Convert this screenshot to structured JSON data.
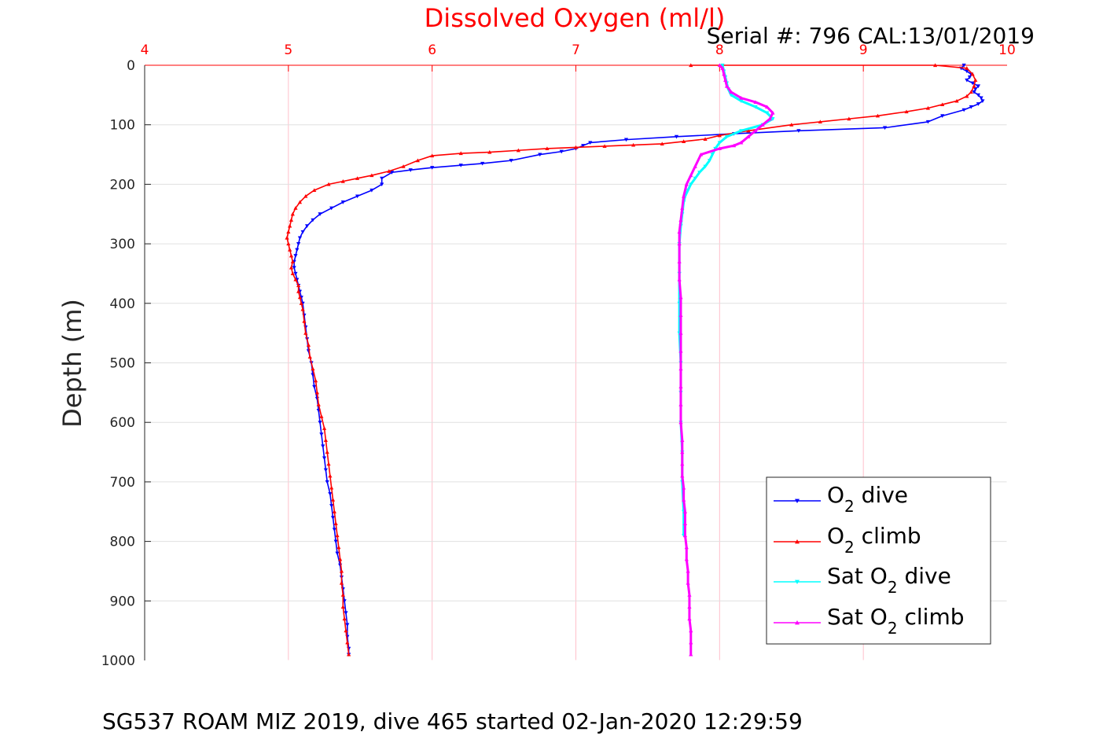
{
  "chart_data": {
    "type": "scatter",
    "title": "Dissolved Oxygen (ml/l)",
    "serial_text": "Serial #: 796  CAL:13/01/2019",
    "xlabel": "",
    "ylabel": "Depth (m)",
    "xlim": [
      4,
      10
    ],
    "ylim": [
      0,
      1000
    ],
    "y_reversed": true,
    "x_axis_location": "top",
    "x_ticks": [
      4,
      5,
      6,
      7,
      8,
      9,
      10
    ],
    "y_ticks": [
      0,
      100,
      200,
      300,
      400,
      500,
      600,
      700,
      800,
      900,
      1000
    ],
    "grid": true,
    "legend_position": "bottom-right",
    "caption": "SG537 ROAM MIZ 2019, dive 465 started 02-Jan-2020 12:29:59",
    "series": [
      {
        "name": "O2 dive",
        "legend": {
          "main": "O",
          "sub": "2",
          "rest": " dive"
        },
        "color": "#0000ff",
        "marker": "triangle-down",
        "points": [
          [
            9.7,
            0
          ],
          [
            9.68,
            5
          ],
          [
            9.72,
            10
          ],
          [
            9.75,
            15
          ],
          [
            9.74,
            20
          ],
          [
            9.72,
            25
          ],
          [
            9.76,
            30
          ],
          [
            9.8,
            35
          ],
          [
            9.78,
            40
          ],
          [
            9.77,
            45
          ],
          [
            9.8,
            50
          ],
          [
            9.82,
            55
          ],
          [
            9.83,
            60
          ],
          [
            9.8,
            65
          ],
          [
            9.75,
            70
          ],
          [
            9.7,
            75
          ],
          [
            9.55,
            85
          ],
          [
            9.45,
            95
          ],
          [
            9.15,
            105
          ],
          [
            8.55,
            110
          ],
          [
            8.1,
            115
          ],
          [
            7.7,
            120
          ],
          [
            7.35,
            125
          ],
          [
            7.1,
            130
          ],
          [
            7.05,
            135
          ],
          [
            7.0,
            140
          ],
          [
            6.9,
            145
          ],
          [
            6.75,
            150
          ],
          [
            6.55,
            160
          ],
          [
            6.35,
            165
          ],
          [
            6.2,
            168
          ],
          [
            6.0,
            172
          ],
          [
            5.85,
            176
          ],
          [
            5.72,
            180
          ],
          [
            5.65,
            190
          ],
          [
            5.65,
            200
          ],
          [
            5.58,
            210
          ],
          [
            5.48,
            220
          ],
          [
            5.38,
            230
          ],
          [
            5.3,
            240
          ],
          [
            5.22,
            250
          ],
          [
            5.17,
            260
          ],
          [
            5.13,
            270
          ],
          [
            5.1,
            280
          ],
          [
            5.08,
            290
          ],
          [
            5.07,
            300
          ],
          [
            5.06,
            310
          ],
          [
            5.05,
            320
          ],
          [
            5.04,
            330
          ],
          [
            5.04,
            340
          ],
          [
            5.05,
            350
          ],
          [
            5.06,
            360
          ],
          [
            5.07,
            370
          ],
          [
            5.08,
            380
          ],
          [
            5.09,
            390
          ],
          [
            5.1,
            400
          ],
          [
            5.11,
            420
          ],
          [
            5.12,
            440
          ],
          [
            5.13,
            460
          ],
          [
            5.14,
            480
          ],
          [
            5.16,
            500
          ],
          [
            5.17,
            520
          ],
          [
            5.18,
            540
          ],
          [
            5.2,
            560
          ],
          [
            5.21,
            580
          ],
          [
            5.22,
            600
          ],
          [
            5.23,
            620
          ],
          [
            5.24,
            640
          ],
          [
            5.25,
            660
          ],
          [
            5.26,
            680
          ],
          [
            5.27,
            700
          ],
          [
            5.29,
            720
          ],
          [
            5.3,
            740
          ],
          [
            5.31,
            760
          ],
          [
            5.32,
            780
          ],
          [
            5.33,
            800
          ],
          [
            5.34,
            820
          ],
          [
            5.36,
            840
          ],
          [
            5.37,
            860
          ],
          [
            5.38,
            880
          ],
          [
            5.39,
            900
          ],
          [
            5.4,
            920
          ],
          [
            5.41,
            940
          ],
          [
            5.41,
            960
          ],
          [
            5.42,
            980
          ],
          [
            5.42,
            990
          ]
        ]
      },
      {
        "name": "O2 climb",
        "legend": {
          "main": "O",
          "sub": "2",
          "rest": " climb"
        },
        "color": "#ff0000",
        "marker": "triangle-up",
        "points": [
          [
            5.42,
            990
          ],
          [
            5.41,
            970
          ],
          [
            5.4,
            950
          ],
          [
            5.39,
            930
          ],
          [
            5.38,
            910
          ],
          [
            5.38,
            890
          ],
          [
            5.37,
            870
          ],
          [
            5.37,
            850
          ],
          [
            5.36,
            830
          ],
          [
            5.35,
            810
          ],
          [
            5.34,
            790
          ],
          [
            5.33,
            770
          ],
          [
            5.32,
            750
          ],
          [
            5.31,
            730
          ],
          [
            5.3,
            710
          ],
          [
            5.29,
            690
          ],
          [
            5.28,
            670
          ],
          [
            5.27,
            650
          ],
          [
            5.26,
            630
          ],
          [
            5.25,
            610
          ],
          [
            5.23,
            590
          ],
          [
            5.21,
            570
          ],
          [
            5.2,
            550
          ],
          [
            5.19,
            530
          ],
          [
            5.17,
            510
          ],
          [
            5.15,
            490
          ],
          [
            5.14,
            470
          ],
          [
            5.12,
            450
          ],
          [
            5.11,
            430
          ],
          [
            5.1,
            410
          ],
          [
            5.09,
            400
          ],
          [
            5.08,
            390
          ],
          [
            5.07,
            380
          ],
          [
            5.07,
            370
          ],
          [
            5.05,
            360
          ],
          [
            5.03,
            350
          ],
          [
            5.02,
            340
          ],
          [
            5.03,
            330
          ],
          [
            5.02,
            320
          ],
          [
            5.01,
            310
          ],
          [
            5.0,
            300
          ],
          [
            4.99,
            290
          ],
          [
            5.0,
            280
          ],
          [
            5.01,
            270
          ],
          [
            5.02,
            260
          ],
          [
            5.03,
            250
          ],
          [
            5.05,
            240
          ],
          [
            5.08,
            230
          ],
          [
            5.12,
            220
          ],
          [
            5.18,
            210
          ],
          [
            5.28,
            200
          ],
          [
            5.38,
            195
          ],
          [
            5.48,
            190
          ],
          [
            5.58,
            185
          ],
          [
            5.7,
            178
          ],
          [
            5.8,
            170
          ],
          [
            5.9,
            160
          ],
          [
            6.0,
            152
          ],
          [
            6.2,
            148
          ],
          [
            6.4,
            146
          ],
          [
            6.6,
            143
          ],
          [
            6.8,
            140
          ],
          [
            7.0,
            138
          ],
          [
            7.2,
            136
          ],
          [
            7.4,
            134
          ],
          [
            7.6,
            132
          ],
          [
            7.75,
            128
          ],
          [
            7.9,
            124
          ],
          [
            8.0,
            118
          ],
          [
            8.2,
            110
          ],
          [
            8.5,
            100
          ],
          [
            8.7,
            95
          ],
          [
            8.9,
            90
          ],
          [
            9.1,
            85
          ],
          [
            9.3,
            78
          ],
          [
            9.45,
            72
          ],
          [
            9.55,
            66
          ],
          [
            9.65,
            60
          ],
          [
            9.72,
            52
          ],
          [
            9.75,
            45
          ],
          [
            9.77,
            35
          ],
          [
            9.78,
            25
          ],
          [
            9.76,
            15
          ],
          [
            9.72,
            5
          ],
          [
            9.5,
            0
          ],
          [
            7.8,
            0
          ]
        ]
      },
      {
        "name": "Sat O2 dive",
        "legend": {
          "main": "Sat O",
          "sub": "2",
          "rest": " dive"
        },
        "color": "#00ffff",
        "marker": "triangle-down",
        "points": [
          [
            8.02,
            0
          ],
          [
            8.03,
            10
          ],
          [
            8.04,
            20
          ],
          [
            8.05,
            30
          ],
          [
            8.06,
            40
          ],
          [
            8.08,
            50
          ],
          [
            8.15,
            60
          ],
          [
            8.25,
            70
          ],
          [
            8.33,
            80
          ],
          [
            8.37,
            90
          ],
          [
            8.3,
            100
          ],
          [
            8.15,
            110
          ],
          [
            8.05,
            120
          ],
          [
            8.0,
            130
          ],
          [
            7.97,
            140
          ],
          [
            7.95,
            150
          ],
          [
            7.93,
            160
          ],
          [
            7.9,
            170
          ],
          [
            7.86,
            180
          ],
          [
            7.83,
            190
          ],
          [
            7.8,
            200
          ],
          [
            7.78,
            210
          ],
          [
            7.76,
            220
          ],
          [
            7.75,
            230
          ],
          [
            7.74,
            250
          ],
          [
            7.73,
            270
          ],
          [
            7.72,
            300
          ],
          [
            7.72,
            350
          ],
          [
            7.72,
            400
          ],
          [
            7.72,
            450
          ],
          [
            7.73,
            500
          ],
          [
            7.73,
            550
          ],
          [
            7.73,
            600
          ],
          [
            7.74,
            650
          ],
          [
            7.74,
            700
          ],
          [
            7.75,
            750
          ],
          [
            7.75,
            790
          ]
        ]
      },
      {
        "name": "Sat O2 climb",
        "legend": {
          "main": "Sat O",
          "sub": "2",
          "rest": " climb"
        },
        "color": "#ff00ff",
        "marker": "triangle-up",
        "points": [
          [
            7.8,
            990
          ],
          [
            7.8,
            970
          ],
          [
            7.8,
            950
          ],
          [
            7.79,
            930
          ],
          [
            7.79,
            910
          ],
          [
            7.79,
            890
          ],
          [
            7.78,
            870
          ],
          [
            7.78,
            850
          ],
          [
            7.77,
            830
          ],
          [
            7.77,
            810
          ],
          [
            7.76,
            790
          ],
          [
            7.76,
            770
          ],
          [
            7.76,
            750
          ],
          [
            7.75,
            730
          ],
          [
            7.75,
            710
          ],
          [
            7.74,
            690
          ],
          [
            7.74,
            670
          ],
          [
            7.74,
            650
          ],
          [
            7.74,
            630
          ],
          [
            7.73,
            600
          ],
          [
            7.73,
            570
          ],
          [
            7.73,
            540
          ],
          [
            7.73,
            510
          ],
          [
            7.73,
            480
          ],
          [
            7.73,
            450
          ],
          [
            7.73,
            420
          ],
          [
            7.73,
            390
          ],
          [
            7.72,
            360
          ],
          [
            7.72,
            330
          ],
          [
            7.72,
            300
          ],
          [
            7.72,
            280
          ],
          [
            7.73,
            260
          ],
          [
            7.74,
            240
          ],
          [
            7.75,
            220
          ],
          [
            7.77,
            200
          ],
          [
            7.8,
            185
          ],
          [
            7.83,
            170
          ],
          [
            7.87,
            150
          ],
          [
            8.0,
            140
          ],
          [
            8.1,
            135
          ],
          [
            8.15,
            130
          ],
          [
            8.2,
            120
          ],
          [
            8.25,
            110
          ],
          [
            8.3,
            100
          ],
          [
            8.35,
            90
          ],
          [
            8.37,
            80
          ],
          [
            8.33,
            70
          ],
          [
            8.25,
            62
          ],
          [
            8.15,
            55
          ],
          [
            8.08,
            45
          ],
          [
            8.05,
            35
          ],
          [
            8.04,
            25
          ],
          [
            8.03,
            15
          ],
          [
            8.02,
            5
          ],
          [
            8.0,
            0
          ]
        ]
      }
    ]
  }
}
